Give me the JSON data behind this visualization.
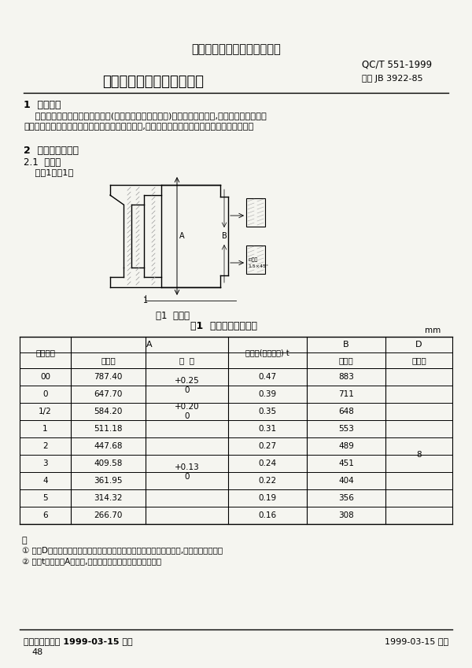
{
  "title_org": "中华人民共和国汽车行业标准",
  "std_number": "QC/T 551-1999",
  "std_replaces": "代替 JB 3922-85",
  "title_main": "汽车发动机飞轮壳安装尺寸",
  "section1_title": "1  适用范围",
  "section1_body": "    本标准规定了汽车发动机飞轮壳(与离合器壳分开式结构)的安装尺寸和公差,适用于载货汽车及客\n车发动机的飞轮壳，不适用于轿车发动机的飞轮壳,越野车、特种货车及特种客车等可参照采用。",
  "section2_title": "2  名义尺寸和公差",
  "section21_title": "2.1  飞轮壳",
  "section21_body": "    见图1和表1。",
  "fig_caption": "图1  飞轮壳",
  "table_caption": "表1  飞轮壳尺寸及公差",
  "table_unit": "mm",
  "col_headers_row1": [
    "尺寸代号",
    "A",
    "",
    "圆跳动(组装飞轮) t",
    "B",
    "D"
  ],
  "col_headers_row2": [
    "",
    "名义值",
    "公  差",
    "",
    "名义值",
    "最小值"
  ],
  "rows": [
    [
      "00",
      "787.40",
      "+0.25\n0",
      "0.47",
      "883",
      ""
    ],
    [
      "0",
      "647.70",
      "",
      "0.39",
      "711",
      ""
    ],
    [
      "1/2",
      "584.20",
      "+0.20\n0",
      "0.35",
      "648",
      ""
    ],
    [
      "1",
      "511.18",
      "",
      "0.31",
      "553",
      ""
    ],
    [
      "2",
      "447.68",
      "",
      "0.27",
      "489",
      "8"
    ],
    [
      "3",
      "409.58",
      "+0.13\n0",
      "0.24",
      "451",
      ""
    ],
    [
      "4",
      "361.95",
      "",
      "0.22",
      "404",
      ""
    ],
    [
      "5",
      "314.32",
      "",
      "0.19",
      "356",
      ""
    ],
    [
      "6",
      "266.70",
      "",
      "0.16",
      "308",
      ""
    ]
  ],
  "note_title": "注",
  "note1": "① 尺寸D是指不带橡胶密封件的飞轮壳的尺寸，如果需要橡胶密封封件,该尺寸可以增加。",
  "note2": "② 公差t应按附录A的说明,在安装在底座上的发动机上测得。",
  "footer_left": "国家机械工业局 1999-03-15 批准",
  "footer_right": "1999-03-15 实施",
  "page_num": "48",
  "bg_color": "#f5f5f0"
}
